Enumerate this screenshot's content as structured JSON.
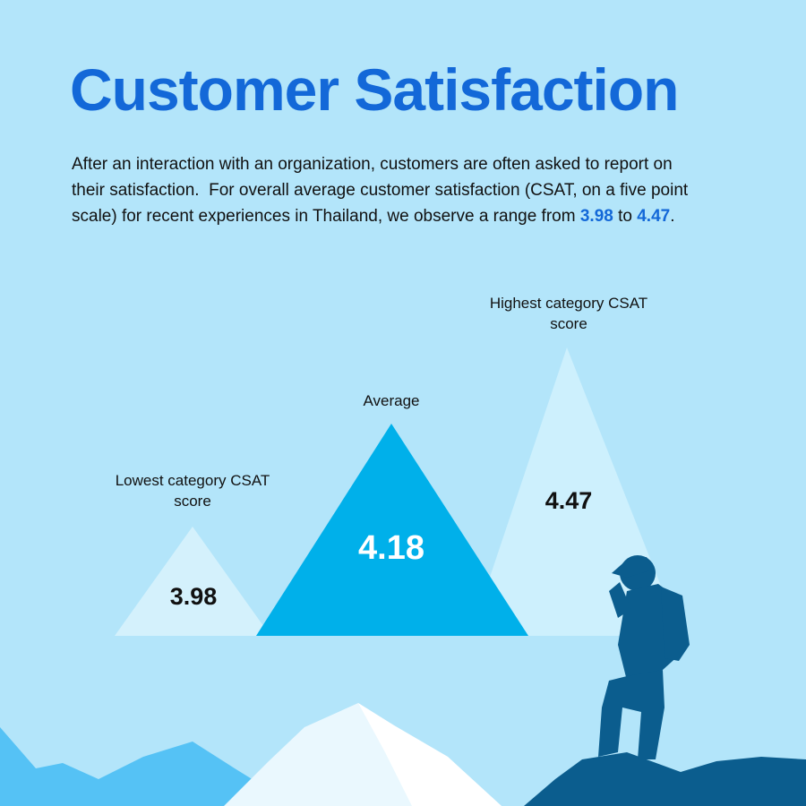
{
  "header": {
    "title": "Customer Satisfaction"
  },
  "intro": {
    "text": "After an interaction with an organization, customers are often asked to report on their satisfaction.  For overall average customer satisfaction (CSAT, on a five point scale) for recent experiences in Thailand, we observe a range from ",
    "between": " to ",
    "end": "."
  },
  "metrics": [
    {
      "label": "Lowest category CSAT score",
      "value": 3.98
    },
    {
      "label": "Average",
      "value": 4.18
    },
    {
      "label": "Highest category CSAT score",
      "value": 4.47
    }
  ]
}
